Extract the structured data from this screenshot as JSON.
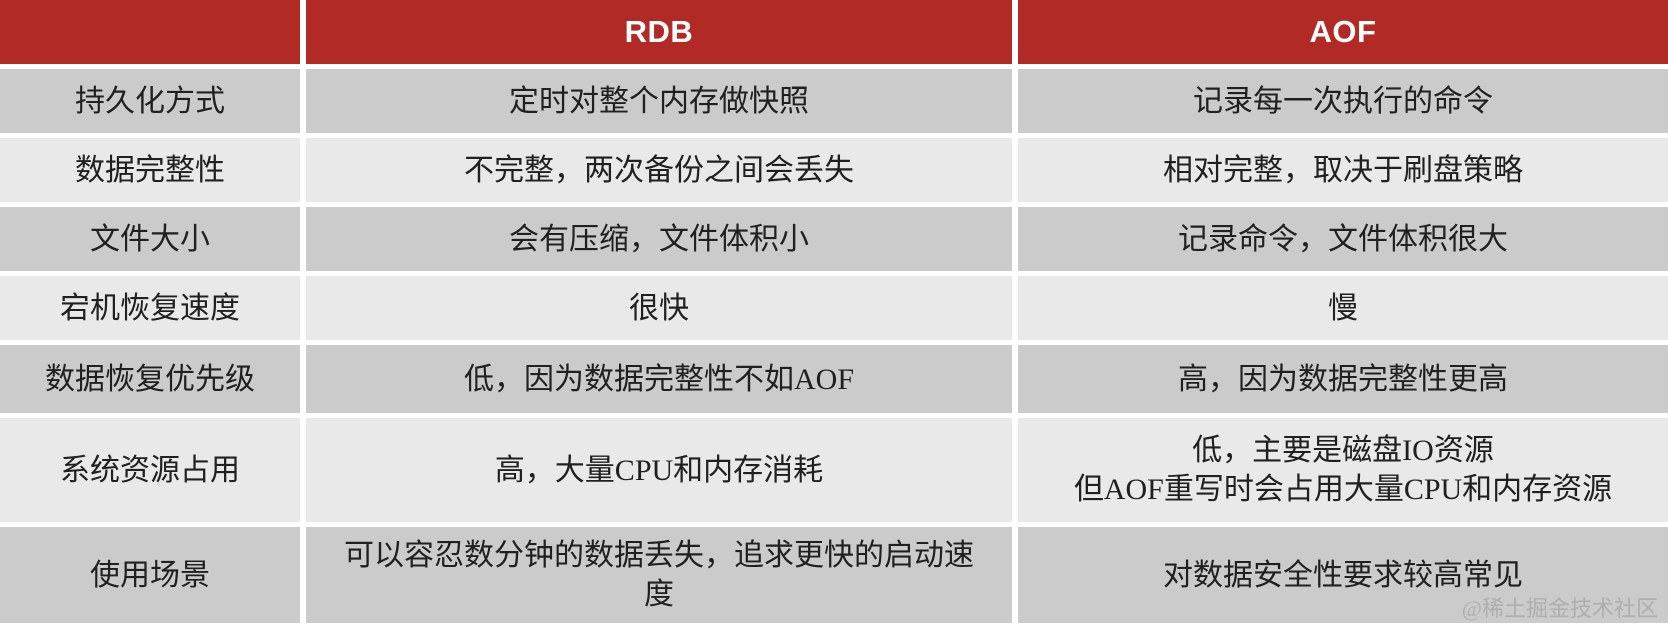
{
  "table": {
    "title_semantic": "RDB vs AOF persistence comparison",
    "header": {
      "blank": "",
      "rdb": "RDB",
      "aof": "AOF"
    },
    "rows": [
      {
        "label": "持久化方式",
        "rdb": "定时对整个内存做快照",
        "aof": "记录每一次执行的命令"
      },
      {
        "label": "数据完整性",
        "rdb": "不完整，两次备份之间会丢失",
        "aof": "相对完整，取决于刷盘策略"
      },
      {
        "label": "文件大小",
        "rdb": "会有压缩，文件体积小",
        "aof": "记录命令，文件体积很大"
      },
      {
        "label": "宕机恢复速度",
        "rdb": "很快",
        "aof": "慢"
      },
      {
        "label": "数据恢复优先级",
        "rdb": "低，因为数据完整性不如AOF",
        "aof": "高，因为数据完整性更高"
      },
      {
        "label": "系统资源占用",
        "rdb": "高，大量CPU和内存消耗",
        "aof": "低，主要是磁盘IO资源\n但AOF重写时会占用大量CPU和内存资源"
      },
      {
        "label": "使用场景",
        "rdb": "可以容忍数分钟的数据丢失，追求更快的启动速度",
        "aof": "对数据安全性要求较高常见"
      }
    ],
    "watermark": "@稀土掘金技术社区"
  },
  "colors": {
    "header_red": "#b22a26",
    "row_dark_gray": "#cbcbcb",
    "row_light_gray": "#e9e9e9",
    "gutter_white": "#ffffff",
    "text_dark": "#202020",
    "header_text": "#ffffff",
    "watermark_gray": "#a9a9a9"
  }
}
